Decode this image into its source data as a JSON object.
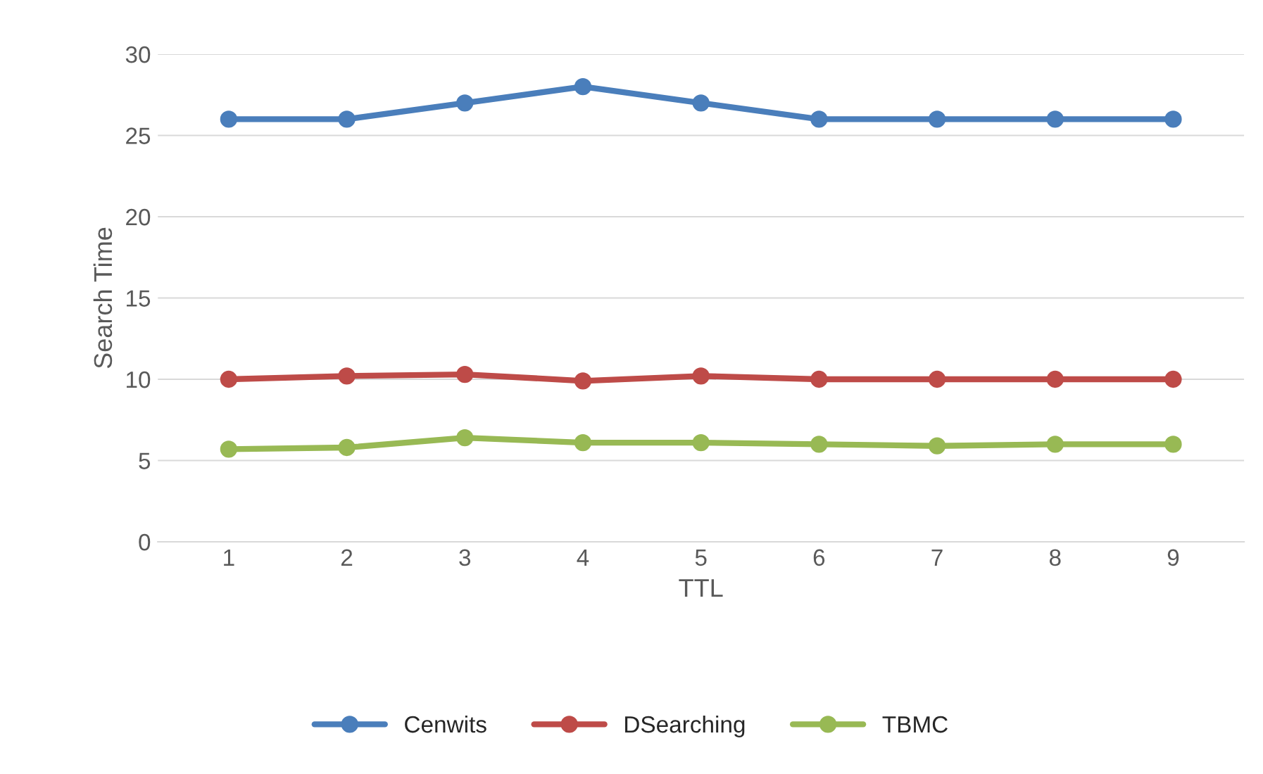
{
  "chart_data": {
    "type": "line",
    "xlabel": "TTL",
    "ylabel": "Search Time",
    "categories": [
      "1",
      "2",
      "3",
      "4",
      "5",
      "6",
      "7",
      "8",
      "9"
    ],
    "series": [
      {
        "name": "Cenwits",
        "color": "#4a7ebb",
        "values": [
          26,
          26,
          27,
          28,
          27,
          26,
          26,
          26,
          26
        ]
      },
      {
        "name": "DSearching",
        "color": "#be4b48",
        "values": [
          10.0,
          10.2,
          10.3,
          9.9,
          10.2,
          10.0,
          10.0,
          10.0,
          10.0
        ]
      },
      {
        "name": "TBMC",
        "color": "#98b954",
        "values": [
          5.7,
          5.8,
          6.4,
          6.1,
          6.1,
          6.0,
          5.9,
          6.0,
          6.0
        ]
      }
    ],
    "ylim": [
      0,
      30
    ],
    "yticks": [
      0,
      5,
      10,
      15,
      20,
      25,
      30
    ],
    "grid": "y",
    "legend": "bottom",
    "marker": "circle",
    "line_style": "solid"
  }
}
